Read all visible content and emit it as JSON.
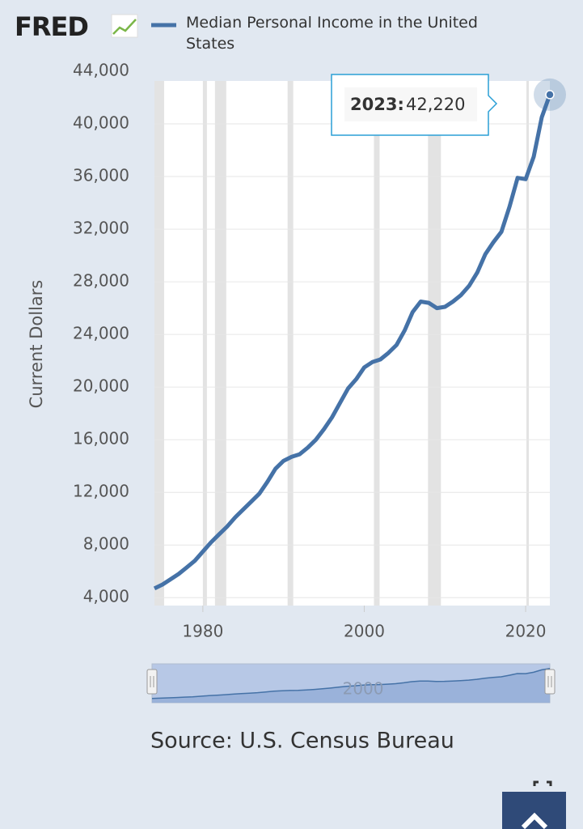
{
  "logo": "FRED",
  "chart_data": {
    "type": "line",
    "y_label": "Current Dollars",
    "source": "Source: U.S. Census Bureau",
    "x": [
      1974,
      1975,
      1976,
      1977,
      1978,
      1979,
      1980,
      1981,
      1982,
      1983,
      1984,
      1985,
      1986,
      1987,
      1988,
      1989,
      1990,
      1991,
      1992,
      1993,
      1994,
      1995,
      1996,
      1997,
      1998,
      1999,
      2000,
      2001,
      2002,
      2003,
      2004,
      2005,
      2006,
      2007,
      2008,
      2009,
      2010,
      2011,
      2012,
      2013,
      2014,
      2015,
      2016,
      2017,
      2018,
      2019,
      2020,
      2021,
      2022,
      2023
    ],
    "series": [
      {
        "name": "Median Personal Income in the United States",
        "color": "#4572a7",
        "values": [
          4700,
          5000,
          5400,
          5800,
          6300,
          6800,
          7500,
          8200,
          8800,
          9400,
          10100,
          10700,
          11300,
          11900,
          12800,
          13800,
          14400,
          14700,
          14900,
          15400,
          16000,
          16800,
          17700,
          18800,
          19900,
          20600,
          21500,
          21900,
          22100,
          22600,
          23200,
          24300,
          25700,
          26500,
          26400,
          26000,
          26100,
          26500,
          27000,
          27700,
          28700,
          30100,
          31000,
          31800,
          33700,
          35900,
          35800,
          37500,
          40500,
          42220
        ]
      }
    ],
    "xlim": [
      1974,
      2023
    ],
    "xticks": [
      1980,
      2000,
      2020
    ],
    "ylim": [
      3400,
      44000
    ],
    "yticks": [
      {
        "value": 4000,
        "label": "4,000"
      },
      {
        "value": 8000,
        "label": "8,000"
      },
      {
        "value": 12000,
        "label": "12,000"
      },
      {
        "value": 16000,
        "label": "16,000"
      },
      {
        "value": 20000,
        "label": "20,000"
      },
      {
        "value": 24000,
        "label": "24,000"
      },
      {
        "value": 28000,
        "label": "28,000"
      },
      {
        "value": 32000,
        "label": "32,000"
      },
      {
        "value": 36000,
        "label": "36,000"
      },
      {
        "value": 40000,
        "label": "40,000"
      },
      {
        "value": 44000,
        "label": "44,000"
      }
    ],
    "grid": true,
    "recessions": [
      [
        1973.9,
        1975.2
      ],
      [
        1980.0,
        1980.5
      ],
      [
        1981.5,
        1982.9
      ],
      [
        1990.5,
        1991.2
      ],
      [
        2001.2,
        2001.9
      ],
      [
        2007.9,
        2009.5
      ],
      [
        2020.1,
        2020.4
      ]
    ],
    "recession_color": "#e3e3e3",
    "tooltip": {
      "title": "2023:",
      "text": "42,220"
    },
    "navigator": {
      "xticks": [
        2000
      ]
    }
  }
}
